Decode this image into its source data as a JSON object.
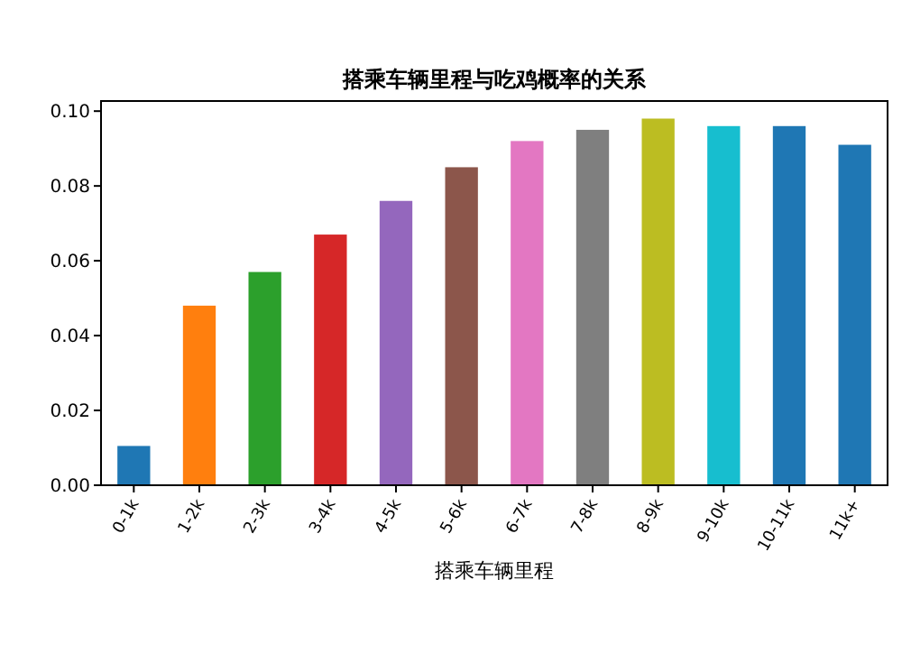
{
  "chart_data": {
    "type": "bar",
    "title": "搭乘车辆里程与吃鸡概率的关系",
    "xlabel": "搭乘车辆里程",
    "categories": [
      "0-1k",
      "1-2k",
      "2-3k",
      "3-4k",
      "4-5k",
      "5-6k",
      "6-7k",
      "7-8k",
      "8-9k",
      "9-10k",
      "10-11k",
      "11k+"
    ],
    "values": [
      0.0105,
      0.048,
      0.057,
      0.067,
      0.076,
      0.085,
      0.092,
      0.095,
      0.098,
      0.096,
      0.096,
      0.091
    ],
    "colors": [
      "#1f77b4",
      "#ff7f0e",
      "#2ca02c",
      "#d62728",
      "#9467bd",
      "#8c564b",
      "#e377c2",
      "#7f7f7f",
      "#bcbd22",
      "#17becf",
      "#1f77b4",
      "#1f77b4"
    ],
    "ylim": [
      0,
      0.1027
    ],
    "yticks": [
      {
        "value": 0,
        "label": "0.00"
      },
      {
        "value": 0.02,
        "label": "0.02"
      },
      {
        "value": 0.04,
        "label": "0.04"
      },
      {
        "value": 0.06,
        "label": "0.06"
      },
      {
        "value": 0.08,
        "label": "0.08"
      },
      {
        "value": 0.1,
        "label": "0.10"
      }
    ],
    "grid": false
  }
}
